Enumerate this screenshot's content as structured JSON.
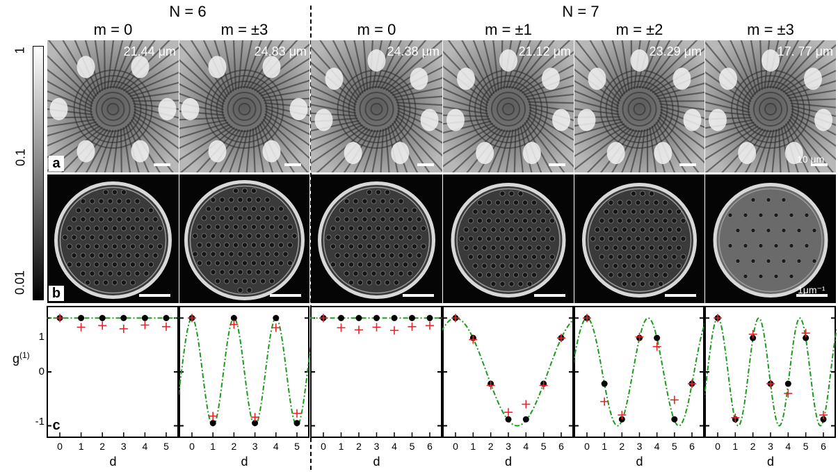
{
  "groups": [
    {
      "title": "N = 6"
    },
    {
      "title": "N = 7"
    }
  ],
  "columns": [
    {
      "m": "m = 0",
      "size": "21.44 μm"
    },
    {
      "m": "m = ±3",
      "size": "24.83 μm"
    },
    {
      "m": "m = 0",
      "size": "24.38 μm"
    },
    {
      "m": "m = ±1",
      "size": "21.12 μm"
    },
    {
      "m": "m = ±2",
      "size": "23.29 μm"
    },
    {
      "m": "m = ±3",
      "size": "17. 77 μm"
    }
  ],
  "colorbar": {
    "ticks": [
      "1",
      "0.1",
      "0.01"
    ]
  },
  "panels": {
    "a": "a",
    "b": "b",
    "c": "c"
  },
  "scale_labels": {
    "real_space": "10 μm",
    "k_space": "1μm⁻¹"
  },
  "axis": {
    "ylabel": "g(1)",
    "ylabel_base": "g",
    "ylabel_sup": "(1)",
    "xlabel": "d",
    "yticks": [
      "1",
      "0",
      "-1"
    ]
  },
  "chart_data": [
    {
      "type": "scatter",
      "title": "N = 6, m = 0",
      "xlabel": "d",
      "ylabel": "g(1)",
      "ylim": [
        -1.2,
        1.2
      ],
      "x": [
        0,
        1,
        2,
        3,
        4,
        5
      ],
      "series": [
        {
          "name": "",
          "marker": "dot",
          "values": [
            1,
            1,
            1,
            1,
            1,
            1
          ]
        },
        {
          "name": "",
          "marker": "cross",
          "values": [
            1,
            0.83,
            0.86,
            0.8,
            0.87,
            0.84
          ]
        },
        {
          "name": "",
          "marker": "dash-dot",
          "fit": "cos",
          "q": 0,
          "values": [
            1,
            1,
            1,
            1,
            1,
            1
          ]
        }
      ]
    },
    {
      "type": "scatter",
      "title": "N = 6, m = ±3",
      "xlabel": "d",
      "ylabel": "g(1)",
      "ylim": [
        -1.2,
        1.2
      ],
      "x": [
        0,
        1,
        2,
        3,
        4,
        5
      ],
      "series": [
        {
          "name": "",
          "marker": "dot",
          "values": [
            1,
            -0.95,
            1,
            -0.95,
            1,
            -0.95
          ]
        },
        {
          "name": "",
          "marker": "cross",
          "values": [
            1,
            -0.82,
            0.88,
            -0.84,
            0.82,
            -0.77
          ]
        },
        {
          "name": "",
          "marker": "dash-dot",
          "fit": "cos",
          "q": 3,
          "values": [
            1,
            -1,
            1,
            -1,
            1,
            -1
          ]
        }
      ]
    },
    {
      "type": "scatter",
      "title": "N = 7, m = 0",
      "xlabel": "d",
      "ylabel": "g(1)",
      "ylim": [
        -1.2,
        1.2
      ],
      "x": [
        0,
        1,
        2,
        3,
        4,
        5,
        6
      ],
      "series": [
        {
          "name": "",
          "marker": "dot",
          "values": [
            1,
            1,
            1,
            1,
            1,
            1,
            1
          ]
        },
        {
          "name": "",
          "marker": "cross",
          "values": [
            1,
            0.82,
            0.78,
            0.83,
            0.77,
            0.84,
            0.86
          ]
        },
        {
          "name": "",
          "marker": "dash-dot",
          "fit": "cos",
          "q": 0,
          "values": [
            1,
            1,
            1,
            1,
            1,
            1,
            1
          ]
        }
      ]
    },
    {
      "type": "scatter",
      "title": "N = 7, m = ±1",
      "xlabel": "d",
      "ylabel": "g(1)",
      "ylim": [
        -1.2,
        1.2
      ],
      "x": [
        0,
        1,
        2,
        3,
        4,
        5,
        6
      ],
      "series": [
        {
          "name": "",
          "marker": "dot",
          "values": [
            1,
            0.63,
            -0.22,
            -0.88,
            -0.88,
            -0.22,
            0.63
          ]
        },
        {
          "name": "",
          "marker": "cross",
          "values": [
            1,
            0.6,
            -0.25,
            -0.75,
            -0.6,
            -0.25,
            0.63
          ]
        },
        {
          "name": "",
          "marker": "dash-dot",
          "fit": "cos",
          "q": 1,
          "values": [
            1,
            0.62,
            -0.22,
            -0.9,
            -0.9,
            -0.22,
            0.62
          ]
        }
      ]
    },
    {
      "type": "scatter",
      "title": "N = 7, m = ±2",
      "xlabel": "d",
      "ylabel": "g(1)",
      "ylim": [
        -1.2,
        1.2
      ],
      "x": [
        0,
        1,
        2,
        3,
        4,
        5,
        6
      ],
      "series": [
        {
          "name": "",
          "marker": "dot",
          "values": [
            1,
            -0.22,
            -0.88,
            0.63,
            0.63,
            -0.88,
            -0.22
          ]
        },
        {
          "name": "",
          "marker": "cross",
          "values": [
            1,
            -0.55,
            -0.8,
            0.65,
            0.47,
            -0.52,
            -0.22
          ]
        },
        {
          "name": "",
          "marker": "dash-dot",
          "fit": "cos",
          "q": 2,
          "values": [
            1,
            -0.22,
            -0.9,
            0.62,
            0.62,
            -0.9,
            -0.22
          ]
        }
      ]
    },
    {
      "type": "scatter",
      "title": "N = 7, m = ±3",
      "xlabel": "d",
      "ylabel": "g(1)",
      "ylim": [
        -1.2,
        1.2
      ],
      "x": [
        0,
        1,
        2,
        3,
        4,
        5,
        6
      ],
      "series": [
        {
          "name": "",
          "marker": "dot",
          "values": [
            1,
            -0.88,
            0.63,
            -0.22,
            -0.22,
            0.63,
            -0.88
          ]
        },
        {
          "name": "",
          "marker": "cross",
          "values": [
            1,
            -0.85,
            0.7,
            -0.22,
            -0.4,
            0.72,
            -0.8
          ]
        },
        {
          "name": "",
          "marker": "dash-dot",
          "fit": "cos",
          "q": 3,
          "values": [
            1,
            -0.9,
            0.62,
            -0.22,
            -0.22,
            0.62,
            -0.9
          ]
        }
      ]
    }
  ],
  "colors": {
    "fit": "#1a9b1a",
    "cross": "#e8232a",
    "dot": "#000000"
  }
}
